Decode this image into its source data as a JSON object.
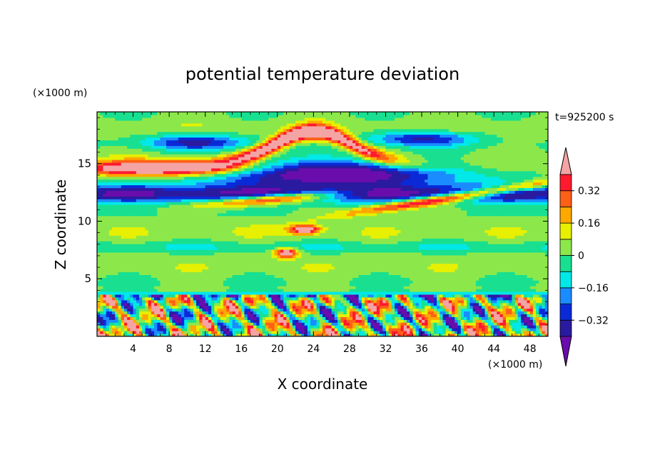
{
  "chart_data": {
    "type": "heatmap",
    "title": "potential temperature deviation",
    "xlabel": "X coordinate",
    "ylabel": "Z coordinate",
    "x_unit": "(×1000 m)",
    "y_unit": "(×1000 m)",
    "time_label": "t=925200 s",
    "xlim": [
      0,
      50
    ],
    "ylim": [
      0,
      19.5
    ],
    "x_ticks": [
      4,
      8,
      12,
      16,
      20,
      24,
      28,
      32,
      36,
      40,
      44,
      48
    ],
    "y_ticks": [
      5,
      10,
      15
    ],
    "colorbar": {
      "levels": [
        -0.4,
        -0.32,
        -0.24,
        -0.16,
        -0.08,
        0,
        0.08,
        0.16,
        0.24,
        0.32,
        0.4
      ],
      "tick_values": [
        0.32,
        0.16,
        0,
        -0.16,
        -0.32
      ],
      "tick_labels": [
        "0.32",
        "0.16",
        "0",
        "−0.16",
        "−0.32"
      ],
      "colors": [
        "#6a0dad",
        "#2a1aa0",
        "#0a2ad8",
        "#1a8cff",
        "#00e8e8",
        "#18e090",
        "#8ce84a",
        "#e6f000",
        "#ffa800",
        "#ff6018",
        "#ff1a2e",
        "#f4a4a4"
      ],
      "extends": "both"
    },
    "features": [
      {
        "name": "tropopause cold band",
        "x": [
          0,
          50
        ],
        "z": [
          11.5,
          13.2
        ],
        "value": -0.36
      },
      {
        "name": "upper cold layer",
        "x": [
          12,
          40
        ],
        "z": [
          12.8,
          15.5
        ],
        "value": -0.4
      },
      {
        "name": "upper warm arch",
        "x": [
          14,
          31
        ],
        "z": [
          14.5,
          17.8
        ],
        "value": 0.42
      },
      {
        "name": "warm streak left",
        "x": [
          0,
          18
        ],
        "z": [
          13.8,
          15.5
        ],
        "value": 0.42
      },
      {
        "name": "warm streak lower",
        "x": [
          13,
          50
        ],
        "z": [
          10.8,
          13.0
        ],
        "value": 0.42
      },
      {
        "name": "boundary layer eddies",
        "x": [
          0,
          50
        ],
        "z": [
          0,
          3.7
        ],
        "value": 0.3
      }
    ]
  }
}
